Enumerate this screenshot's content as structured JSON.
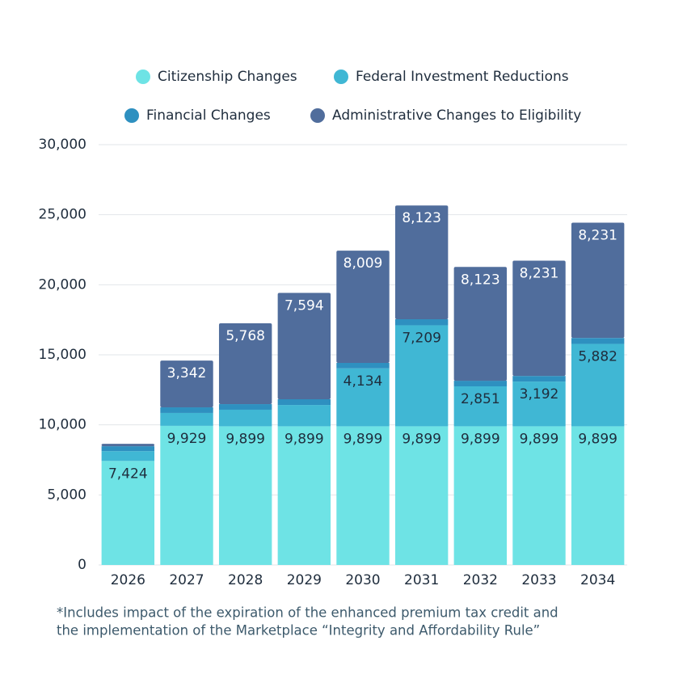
{
  "chart_data": {
    "type": "stacked_bar",
    "categories": [
      "2026",
      "2027",
      "2028",
      "2029",
      "2030",
      "2031",
      "2032",
      "2033",
      "2034"
    ],
    "series": [
      {
        "name": "Citizenship Changes",
        "color": "#6ee3e5",
        "label_color": "#1f2d3d",
        "values": [
          7424,
          9929,
          9899,
          9899,
          9899,
          9899,
          9899,
          9899,
          9899
        ],
        "value_labels": [
          "7,424",
          "9,929",
          "9,899",
          "9,899",
          "9,899",
          "9,899",
          "9,899",
          "9,899",
          "9,899"
        ]
      },
      {
        "name": "Federal Investment Reductions",
        "color": "#40b7d4",
        "label_color": "#1f2d3d",
        "values": [
          700,
          920,
          1180,
          1520,
          4134,
          7209,
          2851,
          3192,
          5882
        ],
        "value_labels": [
          null,
          null,
          null,
          null,
          "4,134",
          "7,209",
          "2,851",
          "3,192",
          "5,882"
        ]
      },
      {
        "name": "Financial Changes",
        "color": "#2e90c0",
        "label_color": "#ffffff",
        "values": [
          350,
          400,
          400,
          410,
          390,
          430,
          400,
          400,
          420
        ],
        "value_labels": [
          null,
          null,
          null,
          null,
          null,
          null,
          null,
          null,
          null
        ]
      },
      {
        "name": "Administrative Changes to Eligibility",
        "color": "#506d9c",
        "label_color": "#ffffff",
        "values": [
          170,
          3342,
          5768,
          7594,
          8009,
          8123,
          8123,
          8231,
          8231
        ],
        "value_labels": [
          null,
          "3,342",
          "5,768",
          "7,594",
          "8,009",
          "8,123",
          "8,123",
          "8,231",
          "8,231"
        ]
      }
    ],
    "ylim": [
      0,
      30000
    ],
    "yticks": [
      0,
      {
        "value": 5000,
        "label": "5,000"
      },
      {
        "value": 10000,
        "label": "10,000"
      },
      {
        "value": 15000,
        "label": "15,000"
      },
      {
        "value": 20000,
        "label": "20,000"
      },
      {
        "value": 25000,
        "label": "25,000"
      },
      {
        "value": 30000,
        "label": "30,000"
      }
    ],
    "grid": true,
    "footnote": [
      "*Includes impact of the expiration of the enhanced premium tax credit and",
      "the implementation of the Marketplace “Integrity and Affordability Rule”"
    ]
  }
}
